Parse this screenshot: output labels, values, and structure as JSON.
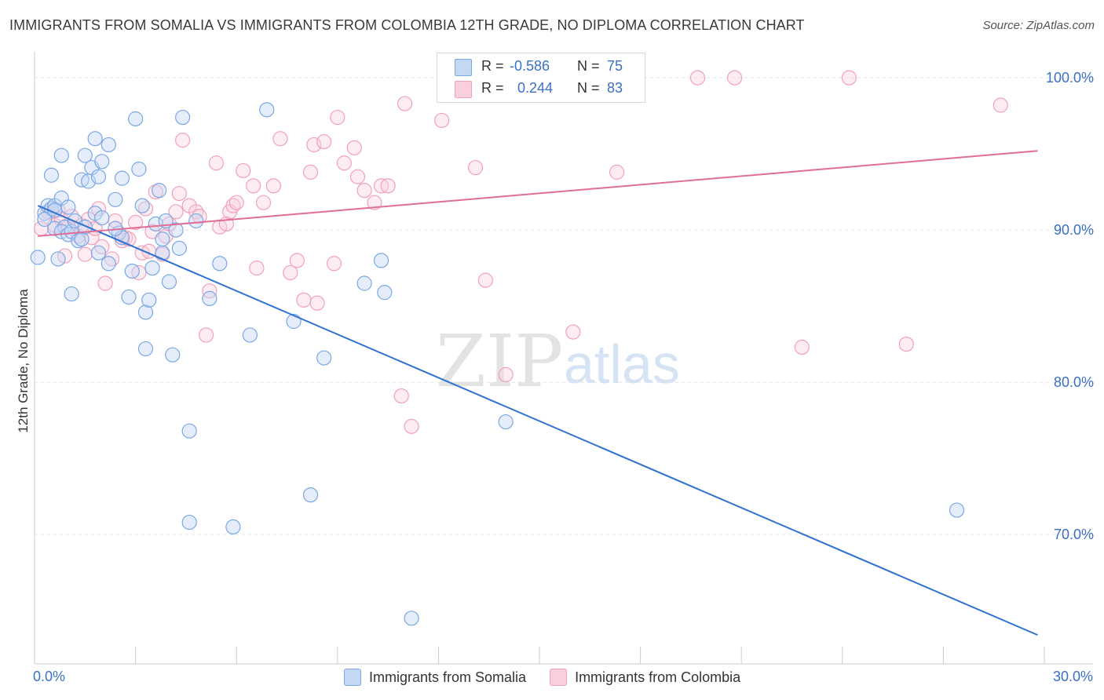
{
  "title": "IMMIGRANTS FROM SOMALIA VS IMMIGRANTS FROM COLOMBIA 12TH GRADE, NO DIPLOMA CORRELATION CHART",
  "source": "Source: ZipAtlas.com",
  "watermark": {
    "zip": "ZIP",
    "atlas": "atlas"
  },
  "legend": {
    "somalia": {
      "r_label": "R =",
      "r_value": "-0.586",
      "n_label": "N =",
      "n_value": "75"
    },
    "colombia": {
      "r_label": "R =",
      "r_value": "0.244",
      "n_label": "N =",
      "n_value": "83"
    }
  },
  "chart_data": {
    "type": "scatter",
    "xlabel": "",
    "ylabel": "12th Grade, No Diploma",
    "x_tick_labels": {
      "min": "0.0%",
      "max": "30.0%"
    },
    "y_tick_labels": [
      "100.0%",
      "90.0%",
      "80.0%",
      "70.0%"
    ],
    "y_ticks": [
      100,
      90,
      80,
      70
    ],
    "xlim": [
      0,
      30
    ],
    "ylim": [
      61.5,
      101.5
    ],
    "grid": true,
    "legend_position": "bottom",
    "series": [
      {
        "name": "Immigrants from Somalia",
        "color": "#7aa7e6",
        "line_color": "#2f72d1",
        "trend": [
          [
            0.1,
            91.6
          ],
          [
            29.8,
            63.4
          ]
        ],
        "points": [
          [
            0.1,
            88.2
          ],
          [
            0.3,
            91.1
          ],
          [
            0.4,
            91.6
          ],
          [
            0.5,
            93.6
          ],
          [
            0.6,
            90.1
          ],
          [
            0.7,
            88.1
          ],
          [
            0.5,
            91.4
          ],
          [
            0.6,
            91.6
          ],
          [
            0.8,
            92.1
          ],
          [
            0.9,
            90.2
          ],
          [
            0.8,
            89.9
          ],
          [
            1.0,
            89.7
          ],
          [
            0.8,
            94.9
          ],
          [
            1.1,
            89.9
          ],
          [
            1.2,
            90.6
          ],
          [
            1.3,
            89.3
          ],
          [
            1.4,
            89.4
          ],
          [
            1.1,
            85.8
          ],
          [
            1.4,
            93.3
          ],
          [
            1.5,
            94.9
          ],
          [
            1.6,
            93.2
          ],
          [
            1.7,
            94.1
          ],
          [
            1.8,
            96.0
          ],
          [
            1.9,
            93.5
          ],
          [
            2.0,
            94.5
          ],
          [
            2.2,
            95.6
          ],
          [
            1.8,
            91.1
          ],
          [
            1.9,
            88.5
          ],
          [
            2.2,
            87.8
          ],
          [
            2.4,
            92.0
          ],
          [
            2.5,
            89.8
          ],
          [
            2.6,
            89.5
          ],
          [
            2.6,
            93.4
          ],
          [
            2.8,
            85.6
          ],
          [
            2.9,
            87.3
          ],
          [
            3.0,
            97.3
          ],
          [
            3.1,
            94.0
          ],
          [
            3.2,
            91.6
          ],
          [
            3.3,
            82.2
          ],
          [
            3.3,
            84.6
          ],
          [
            3.4,
            85.4
          ],
          [
            3.5,
            87.5
          ],
          [
            3.6,
            90.4
          ],
          [
            3.7,
            92.6
          ],
          [
            3.8,
            88.5
          ],
          [
            3.8,
            89.4
          ],
          [
            3.9,
            90.6
          ],
          [
            4.0,
            86.6
          ],
          [
            4.1,
            81.8
          ],
          [
            4.2,
            90.0
          ],
          [
            4.3,
            88.8
          ],
          [
            4.4,
            97.4
          ],
          [
            4.6,
            76.8
          ],
          [
            4.6,
            70.8
          ],
          [
            4.8,
            90.6
          ],
          [
            5.2,
            85.5
          ],
          [
            5.5,
            87.8
          ],
          [
            5.9,
            70.5
          ],
          [
            6.4,
            83.1
          ],
          [
            6.9,
            97.9
          ],
          [
            7.7,
            84.0
          ],
          [
            8.2,
            72.6
          ],
          [
            8.6,
            81.6
          ],
          [
            9.8,
            86.5
          ],
          [
            10.3,
            88.0
          ],
          [
            10.4,
            85.9
          ],
          [
            11.2,
            64.5
          ],
          [
            14.0,
            77.4
          ],
          [
            27.4,
            71.6
          ],
          [
            0.3,
            90.7
          ],
          [
            1.5,
            90.2
          ],
          [
            2.4,
            90.1
          ],
          [
            0.6,
            91.3
          ],
          [
            1.0,
            91.5
          ],
          [
            2.0,
            90.8
          ]
        ]
      },
      {
        "name": "Immigrants from Colombia",
        "color": "#f2a0bb",
        "line_color": "#e06e97",
        "trend": [
          [
            0.1,
            89.6
          ],
          [
            29.8,
            95.2
          ]
        ],
        "points": [
          [
            0.2,
            90.1
          ],
          [
            0.4,
            91.2
          ],
          [
            0.6,
            90.3
          ],
          [
            0.7,
            91.3
          ],
          [
            0.8,
            90.7
          ],
          [
            0.9,
            88.3
          ],
          [
            1.0,
            90.2
          ],
          [
            1.1,
            90.9
          ],
          [
            1.3,
            89.6
          ],
          [
            1.4,
            90.3
          ],
          [
            1.5,
            88.4
          ],
          [
            1.6,
            90.7
          ],
          [
            1.7,
            89.5
          ],
          [
            1.8,
            90.1
          ],
          [
            1.9,
            91.4
          ],
          [
            2.0,
            88.9
          ],
          [
            2.1,
            86.5
          ],
          [
            2.3,
            88.1
          ],
          [
            2.4,
            90.6
          ],
          [
            2.6,
            89.3
          ],
          [
            2.7,
            89.5
          ],
          [
            2.8,
            89.4
          ],
          [
            3.0,
            90.5
          ],
          [
            3.1,
            87.2
          ],
          [
            3.2,
            88.5
          ],
          [
            3.3,
            91.4
          ],
          [
            3.4,
            88.6
          ],
          [
            3.5,
            89.9
          ],
          [
            3.6,
            92.5
          ],
          [
            3.8,
            88.4
          ],
          [
            3.9,
            89.6
          ],
          [
            4.0,
            90.4
          ],
          [
            4.2,
            91.2
          ],
          [
            4.3,
            92.4
          ],
          [
            4.4,
            95.9
          ],
          [
            4.6,
            91.6
          ],
          [
            4.8,
            91.2
          ],
          [
            4.9,
            90.9
          ],
          [
            5.1,
            83.1
          ],
          [
            5.2,
            86.0
          ],
          [
            5.4,
            94.4
          ],
          [
            5.5,
            90.2
          ],
          [
            5.7,
            90.4
          ],
          [
            5.8,
            91.2
          ],
          [
            5.9,
            91.6
          ],
          [
            6.0,
            91.8
          ],
          [
            6.2,
            93.9
          ],
          [
            6.5,
            92.9
          ],
          [
            6.6,
            87.5
          ],
          [
            6.8,
            91.8
          ],
          [
            7.1,
            92.9
          ],
          [
            7.3,
            96.0
          ],
          [
            7.6,
            87.2
          ],
          [
            7.8,
            88.0
          ],
          [
            8.0,
            85.4
          ],
          [
            8.2,
            93.8
          ],
          [
            8.3,
            95.6
          ],
          [
            8.4,
            85.2
          ],
          [
            8.6,
            95.8
          ],
          [
            8.9,
            87.8
          ],
          [
            9.0,
            97.4
          ],
          [
            9.2,
            94.4
          ],
          [
            9.5,
            95.4
          ],
          [
            9.6,
            93.5
          ],
          [
            9.8,
            92.6
          ],
          [
            10.1,
            91.8
          ],
          [
            10.3,
            92.9
          ],
          [
            10.5,
            92.9
          ],
          [
            10.9,
            79.1
          ],
          [
            11.0,
            98.3
          ],
          [
            11.2,
            77.1
          ],
          [
            12.1,
            97.2
          ],
          [
            13.1,
            94.1
          ],
          [
            13.4,
            86.7
          ],
          [
            14.0,
            80.5
          ],
          [
            16.0,
            83.3
          ],
          [
            17.3,
            93.8
          ],
          [
            19.7,
            100.0
          ],
          [
            20.8,
            100.0
          ],
          [
            24.2,
            100.0
          ],
          [
            28.7,
            98.2
          ],
          [
            22.8,
            82.3
          ],
          [
            25.9,
            82.5
          ]
        ]
      }
    ]
  }
}
